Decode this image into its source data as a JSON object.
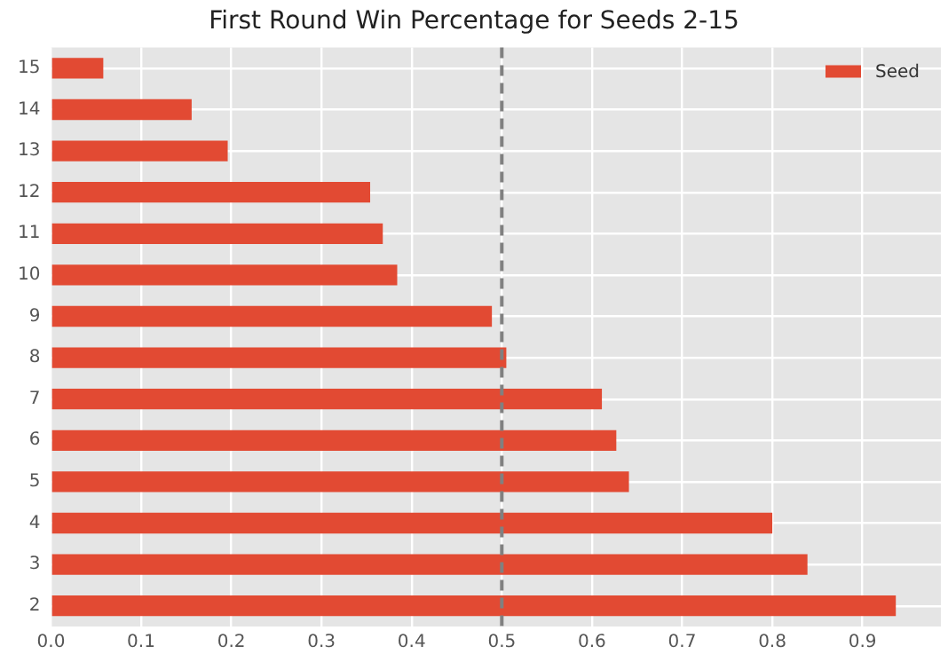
{
  "chart_data": {
    "type": "bar",
    "orientation": "horizontal",
    "title": "First Round Win Percentage for Seeds 2-15",
    "categories": [
      "15",
      "14",
      "13",
      "12",
      "11",
      "10",
      "9",
      "8",
      "7",
      "6",
      "5",
      "4",
      "3",
      "2"
    ],
    "series": [
      {
        "name": "Seed",
        "color": "#e24a33",
        "values": [
          0.058,
          0.156,
          0.196,
          0.354,
          0.368,
          0.384,
          0.489,
          0.505,
          0.611,
          0.627,
          0.641,
          0.8,
          0.839,
          0.937
        ]
      }
    ],
    "xlim": [
      0,
      0.987
    ],
    "xticks": [
      {
        "value": 0,
        "label": "0.0"
      },
      0.1,
      0.2,
      0.3,
      0.4,
      0.5,
      0.6,
      0.7,
      0.8,
      0.9
    ],
    "ref_lines": [
      {
        "axis": "x",
        "value": 0.5,
        "color": "#808080",
        "line_style": "dashed"
      }
    ],
    "grid": true,
    "legend": "top right"
  }
}
